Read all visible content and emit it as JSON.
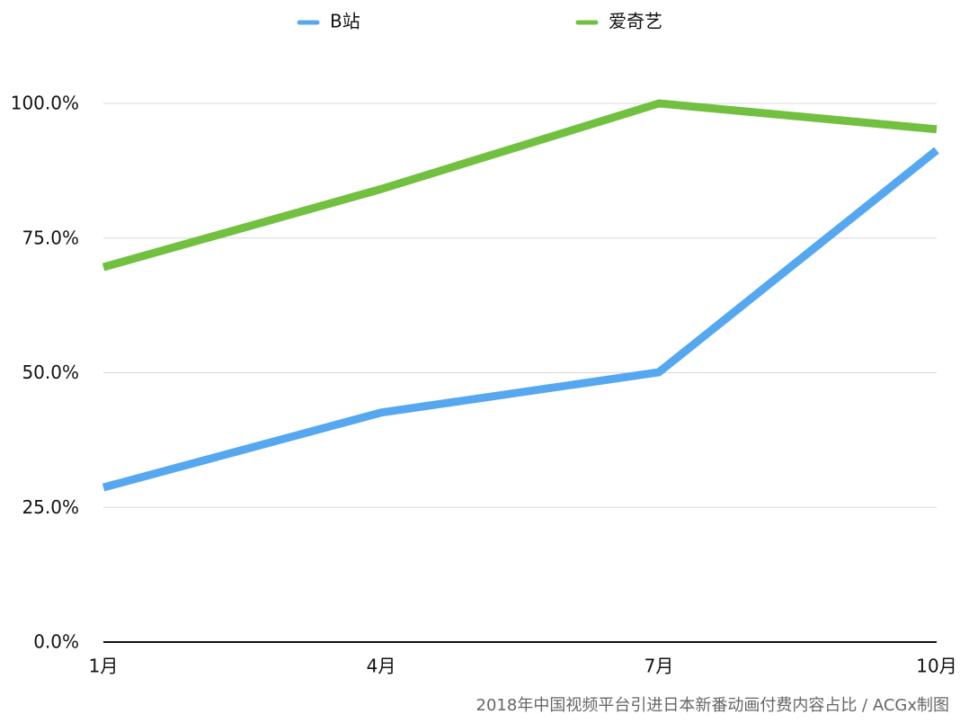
{
  "chart_data": {
    "type": "line",
    "categories": [
      "1月",
      "4月",
      "7月",
      "10月"
    ],
    "series": [
      {
        "name": "B站",
        "color": "#55a8f0",
        "values": [
          28.7,
          42.6,
          50.1,
          91.3
        ]
      },
      {
        "name": "爱奇艺",
        "color": "#72c040",
        "values": [
          69.6,
          84.1,
          100,
          95.2
        ]
      }
    ],
    "ylim": [
      0,
      100
    ],
    "yticks": [
      {
        "value": 0,
        "label": "0.0%"
      },
      {
        "value": 25,
        "label": "25.0%"
      },
      {
        "value": 50,
        "label": "50.0%"
      },
      {
        "value": 75,
        "label": "75.0%"
      },
      {
        "value": 100,
        "label": "100.0%"
      }
    ],
    "grid": true,
    "legend": "top",
    "source": "2018年中国视频平台引进日本新番动画付费内容占比 / ACGx制图"
  }
}
